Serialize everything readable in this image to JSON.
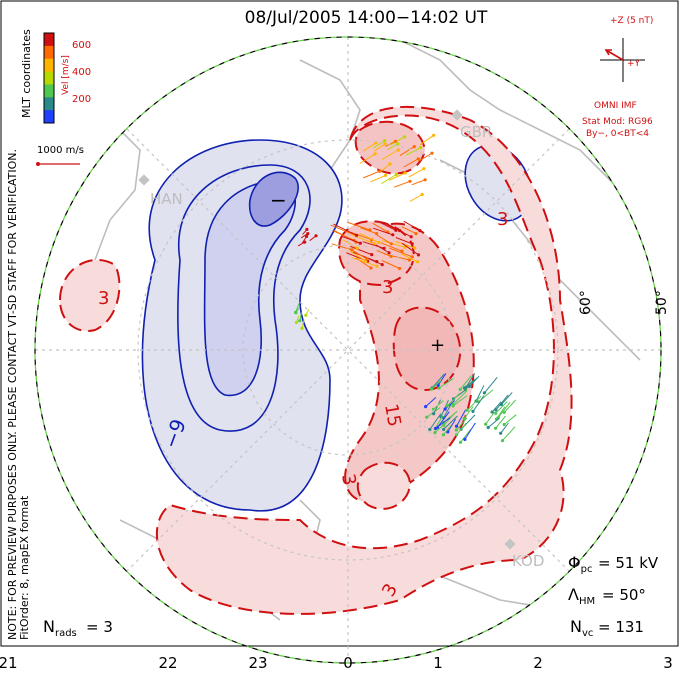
{
  "title": "08/Jul/2005 14:00−14:02 UT",
  "colorbar": {
    "label": "Vel [m/s]",
    "ticks": [
      "600",
      "400",
      "200"
    ],
    "colors": [
      "#d01010",
      "#ff6a00",
      "#ffb400",
      "#b8d800",
      "#4fc84f",
      "#2a8a8a",
      "#2040ff"
    ]
  },
  "side_note": "NOTE: FOR PREVIEW PURPOSES ONLY. PLEASE CONTACT VT-SD STAFF FOR VERIFICATION.",
  "side_note2": "MLT coordinates",
  "fit_order": "FitOrder: 8, mapEX format",
  "scale": {
    "label": "1000 m/s"
  },
  "imf": {
    "z_label": "+Z (5 nT)",
    "y_label": "+Y",
    "omni": "OMNI IMF",
    "model": "Stat Mod: RG96",
    "condition": "By−, 0<BT<4"
  },
  "stations": [
    {
      "name": "HAN"
    },
    {
      "name": "GBR"
    },
    {
      "name": "KOD"
    }
  ],
  "contour_labels": {
    "neg": "−9",
    "pos_a": "3",
    "pos_b": "3",
    "pos_c": "3",
    "pos_d": "3",
    "pos_e": "15",
    "pos_f": "3"
  },
  "extrema": {
    "min": "−",
    "max": "+"
  },
  "lat_labels": [
    "60°",
    "50°"
  ],
  "mlt_ticks": [
    "21",
    "22",
    "23",
    "0",
    "1",
    "2",
    "3"
  ],
  "params": {
    "phi_pc": "= 51 kV",
    "lambda_hm": "= 50°",
    "n_vc": "= 131",
    "n_rads": "= 3"
  },
  "colors": {
    "negative_fill": "#e0e2f0",
    "negative_line": "#1020b0",
    "positive_fill": "#f8dcdc",
    "positive_line": "#d01010",
    "boundary": "#60d040"
  }
}
